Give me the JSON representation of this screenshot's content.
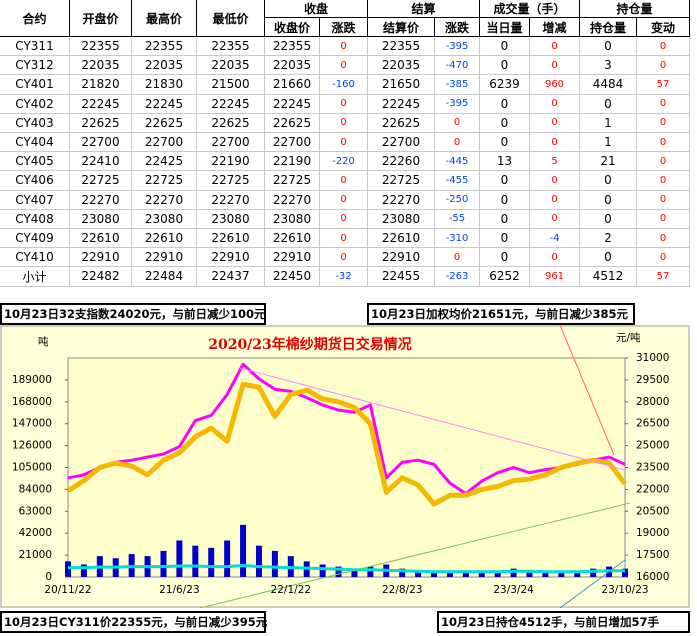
{
  "table": {
    "group_headers": [
      "合约",
      "开盘价",
      "最高价",
      "最低价",
      "收盘",
      "结算",
      "成交量（手）",
      "持仓量"
    ],
    "sub_headers": [
      "收盘价",
      "涨跌",
      "结算价",
      "涨跌",
      "当日量",
      "增减",
      "持仓量",
      "变动"
    ],
    "rows": [
      [
        "CY311",
        22355,
        22355,
        22355,
        22355,
        0,
        22355,
        -395,
        0,
        0,
        0,
        0
      ],
      [
        "CY312",
        22035,
        22035,
        22035,
        22035,
        0,
        22035,
        -470,
        0,
        0,
        3,
        0
      ],
      [
        "CY401",
        21820,
        21830,
        21500,
        21660,
        -160,
        21650,
        -385,
        6239,
        960,
        4484,
        57
      ],
      [
        "CY402",
        22245,
        22245,
        22245,
        22245,
        0,
        22245,
        -395,
        0,
        0,
        0,
        0
      ],
      [
        "CY403",
        22625,
        22625,
        22625,
        22625,
        0,
        22625,
        0,
        0,
        0,
        1,
        0
      ],
      [
        "CY404",
        22700,
        22700,
        22700,
        22700,
        0,
        22700,
        0,
        0,
        0,
        1,
        0
      ],
      [
        "CY405",
        22410,
        22425,
        22190,
        22190,
        -220,
        22260,
        -445,
        13,
        5,
        21,
        0
      ],
      [
        "CY406",
        22725,
        22725,
        22725,
        22725,
        0,
        22725,
        -455,
        0,
        0,
        0,
        0
      ],
      [
        "CY407",
        22270,
        22270,
        22270,
        22270,
        0,
        22270,
        -250,
        0,
        0,
        0,
        0
      ],
      [
        "CY408",
        23080,
        23080,
        23080,
        23080,
        0,
        23080,
        -55,
        0,
        0,
        0,
        0
      ],
      [
        "CY409",
        22610,
        22610,
        22610,
        22610,
        0,
        22610,
        -310,
        0,
        -4,
        2,
        0
      ],
      [
        "CY410",
        22910,
        22910,
        22910,
        22910,
        0,
        22910,
        0,
        0,
        0,
        0,
        0
      ],
      [
        "小计",
        22482,
        22484,
        22437,
        22450,
        -32,
        22455,
        -263,
        6252,
        961,
        4512,
        57
      ]
    ]
  },
  "notes": [
    "10月23日32支指数24020元，与前日减少100元",
    "10月23日加权均价21651元，与前日减少385元",
    "10月23日CY311价22355元，与前日减少395元",
    "10月23日持仓4512手，与前日增加57手"
  ],
  "chart_data": {
    "type": "line",
    "title": "2020/23年棉纱期货日交易情况",
    "ylabel": "吨",
    "y2label": "元/吨",
    "categories": [
      "20/11/22",
      null,
      null,
      null,
      null,
      null,
      null,
      "21/6/23",
      null,
      null,
      null,
      null,
      null,
      null,
      "22/1/22",
      null,
      null,
      null,
      null,
      null,
      null,
      "22/8/23",
      null,
      null,
      null,
      null,
      null,
      null,
      "23/3/24",
      null,
      null,
      null,
      null,
      null,
      null,
      "23/10/23"
    ],
    "ylim": [
      0,
      210000
    ],
    "yticks": [
      0,
      21000,
      42000,
      63000,
      84000,
      105000,
      126000,
      147000,
      168000,
      189000
    ],
    "y2lim": [
      16000,
      31000
    ],
    "y2ticks": [
      16000,
      17500,
      19000,
      20500,
      22000,
      23500,
      25000,
      26500,
      28000,
      29500,
      31000
    ],
    "series": [
      {
        "type": "bar",
        "color": "#0000cc",
        "values": [
          15000,
          12000,
          20000,
          18000,
          22000,
          20000,
          25000,
          35000,
          30000,
          28000,
          35000,
          50000,
          30000,
          25000,
          20000,
          15000,
          12000,
          10000,
          8000,
          10000,
          12000,
          8000,
          6000,
          5000,
          5000,
          4000,
          5000,
          6000,
          8000,
          6000,
          5000,
          5000,
          6000,
          8000,
          10000,
          8000
        ]
      },
      {
        "type": "line",
        "color": "#00dddd",
        "values": [
          9000,
          9000,
          9500,
          9500,
          10000,
          10000,
          10000,
          10500,
          10500,
          10000,
          10000,
          11000,
          10000,
          9500,
          9000,
          8500,
          8000,
          7500,
          7000,
          7000,
          6500,
          6000,
          5500,
          5000,
          5000,
          5000,
          5000,
          5000,
          5500,
          5500,
          5000,
          5000,
          5000,
          5500,
          6000,
          6000
        ]
      },
      {
        "type": "line",
        "color": "#ff00ff",
        "values": [
          95000,
          98000,
          105000,
          110000,
          112000,
          115000,
          118000,
          125000,
          150000,
          155000,
          175000,
          204000,
          190000,
          180000,
          178000,
          172000,
          165000,
          160000,
          158000,
          165000,
          95000,
          110000,
          112000,
          108000,
          90000,
          80000,
          92000,
          100000,
          105000,
          100000,
          103000,
          105000,
          108000,
          112000,
          115000,
          108000
        ]
      },
      {
        "type": "line",
        "axis": "y2",
        "color": "#f5b800",
        "values": [
          21900,
          22600,
          23500,
          23800,
          23600,
          23000,
          24000,
          24500,
          25600,
          26200,
          25300,
          29200,
          29000,
          27000,
          28500,
          28800,
          28200,
          28000,
          27600,
          26500,
          21800,
          22800,
          22300,
          21000,
          21600,
          21600,
          22000,
          22200,
          22600,
          22700,
          23000,
          23500,
          23800,
          24000,
          23800,
          22400
        ]
      }
    ]
  }
}
